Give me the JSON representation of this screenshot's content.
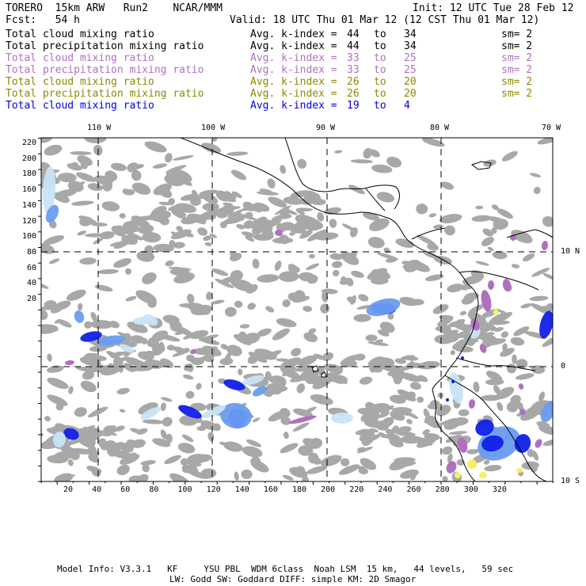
{
  "header": {
    "run_title": "TORERO  15km ARW   Run2    NCAR/MMM",
    "init": "Init: 12 UTC Tue 28 Feb 12",
    "fcst": "Fcst:   54 h",
    "valid": "Valid: 18 UTC Thu 01 Mar 12 (12 CST Thu 01 Mar 12)"
  },
  "fields": [
    {
      "name": "Total cloud mixing ratio",
      "kindex": "Avg. k-index =",
      "k1": "44",
      "to": "to",
      "k2": "34",
      "sm": "sm= 2",
      "color": "#000000"
    },
    {
      "name": "Total precipitation mixing ratio",
      "kindex": "Avg. k-index =",
      "k1": "44",
      "to": "to",
      "k2": "34",
      "sm": "sm= 2",
      "color": "#000000"
    },
    {
      "name": "Total cloud mixing ratio",
      "kindex": "Avg. k-index =",
      "k1": "33",
      "to": "to",
      "k2": "25",
      "sm": "sm= 2",
      "color": "#b070c0"
    },
    {
      "name": "Total precipitation mixing ratio",
      "kindex": "Avg. k-index =",
      "k1": "33",
      "to": "to",
      "k2": "25",
      "sm": "sm= 2",
      "color": "#b070c0"
    },
    {
      "name": "Total cloud mixing ratio",
      "kindex": "Avg. k-index =",
      "k1": "26",
      "to": "to",
      "k2": "20",
      "sm": "sm= 2",
      "color": "#8a8a00"
    },
    {
      "name": "Total precipitation mixing ratio",
      "kindex": "Avg. k-index =",
      "k1": "26",
      "to": "to",
      "k2": "20",
      "sm": "sm= 2",
      "color": "#8a8a00"
    },
    {
      "name": "Total cloud mixing ratio",
      "kindex": "Avg. k-index =",
      "k1": "19",
      "to": "to",
      "k2": "4",
      "sm": "",
      "color": "#0000e0"
    }
  ],
  "map": {
    "lon_labels": [
      "110 W",
      "100 W",
      "90 W",
      "80 W",
      "70 W"
    ],
    "lat_labels": [
      "10 N",
      "0",
      "10 S"
    ],
    "x_ticks": [
      "20",
      "40",
      "60",
      "80",
      "100",
      "120",
      "140",
      "160",
      "180",
      "200",
      "220",
      "240",
      "260",
      "280",
      "300",
      "320"
    ],
    "y_ticks": [
      "220",
      "200",
      "180",
      "160",
      "140",
      "120",
      "100",
      "80",
      "60",
      "40",
      "20"
    ],
    "colors": {
      "gray_cloud": "#a8a8a8",
      "light_blue": "#c8e4f8",
      "mid_blue": "#6a9cf0",
      "dark_blue": "#1020e8",
      "purple": "#b070c0",
      "yellow": "#f8f060"
    }
  },
  "footer": {
    "line1": "Model Info: V3.3.1   KF     YSU PBL  WDM 6class  Noah LSM  15 km,   44 levels,   59 sec",
    "line2": "LW: Godd SW: Goddard DIFF: simple KM: 2D Smagor"
  }
}
